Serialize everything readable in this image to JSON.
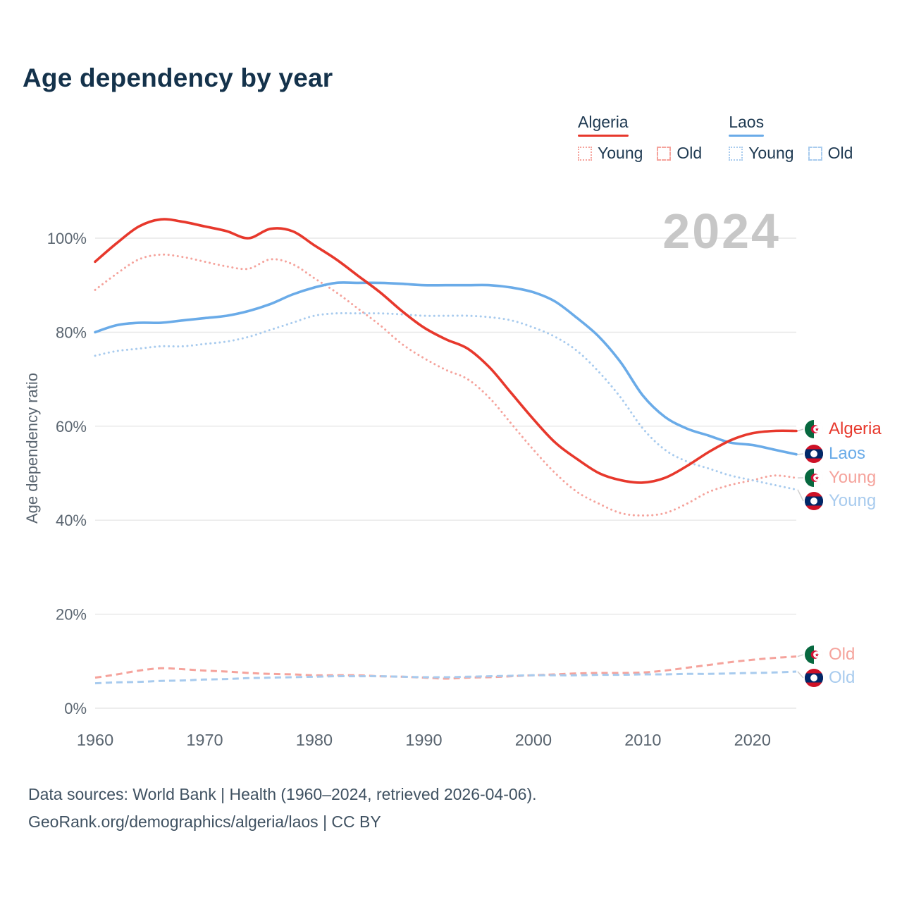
{
  "title": "Age dependency by year",
  "watermark": "2024",
  "ylabel": "Age dependency ratio",
  "colors": {
    "algeria": "#e7382c",
    "algeria_light": "#f5a39c",
    "laos": "#6aabe8",
    "laos_light": "#a8cbee"
  },
  "legend": {
    "algeria": {
      "label": "Algeria",
      "young": "Young",
      "old": "Old"
    },
    "laos": {
      "label": "Laos",
      "young": "Young",
      "old": "Old"
    }
  },
  "end_labels": [
    {
      "label": "Algeria",
      "flag": "algeria",
      "color": "#e7382c"
    },
    {
      "label": "Laos",
      "flag": "laos",
      "color": "#6aabe8"
    },
    {
      "label": "Young",
      "flag": "algeria",
      "color": "#f5a39c"
    },
    {
      "label": "Young",
      "flag": "laos",
      "color": "#a8cbee"
    },
    {
      "label": "Old",
      "flag": "algeria",
      "color": "#f5a39c"
    },
    {
      "label": "Old",
      "flag": "laos",
      "color": "#a8cbee"
    }
  ],
  "footer": {
    "line1": "Data sources: World Bank | Health (1960–2024, retrieved 2026-04-06).",
    "line2": "GeoRank.org/demographics/algeria/laos | CC BY"
  },
  "chart_data": {
    "type": "line",
    "title": "Age dependency by year",
    "xlabel": "",
    "ylabel": "Age dependency ratio",
    "xlim": [
      1960,
      2024
    ],
    "ylim": [
      0,
      107
    ],
    "grid": true,
    "legend_position": "top-right",
    "watermark": "2024",
    "yticks": [
      {
        "v": 0,
        "label": "0%"
      },
      {
        "v": 20,
        "label": "20%"
      },
      {
        "v": 40,
        "label": "40%"
      },
      {
        "v": 60,
        "label": "60%"
      },
      {
        "v": 80,
        "label": "80%"
      },
      {
        "v": 100,
        "label": "100%"
      }
    ],
    "xticks": [
      {
        "v": 1960,
        "label": "1960"
      },
      {
        "v": 1970,
        "label": "1970"
      },
      {
        "v": 1980,
        "label": "1980"
      },
      {
        "v": 1990,
        "label": "1990"
      },
      {
        "v": 2000,
        "label": "2000"
      },
      {
        "v": 2010,
        "label": "2010"
      },
      {
        "v": 2020,
        "label": "2020"
      }
    ],
    "x": [
      1960,
      1962,
      1964,
      1966,
      1968,
      1970,
      1972,
      1974,
      1976,
      1978,
      1980,
      1982,
      1984,
      1986,
      1988,
      1990,
      1992,
      1994,
      1996,
      1998,
      2000,
      2002,
      2004,
      2006,
      2008,
      2010,
      2012,
      2014,
      2016,
      2018,
      2020,
      2022,
      2024
    ],
    "series": [
      {
        "name": "Algeria Young",
        "country": "Algeria",
        "measure": "Young",
        "color": "#f5a39c",
        "style": "dotted",
        "values": [
          89,
          92.5,
          95.5,
          96.5,
          96,
          95,
          94,
          93.5,
          95.5,
          94.5,
          91.5,
          88.5,
          85,
          81.5,
          77.5,
          74.5,
          72,
          70,
          66,
          60.5,
          55,
          50,
          46,
          43.5,
          41.5,
          41,
          41.5,
          43.5,
          46,
          47.5,
          48.5,
          49.5,
          49
        ]
      },
      {
        "name": "Laos Young",
        "country": "Laos",
        "measure": "Young",
        "color": "#a8cbee",
        "style": "dotted",
        "values": [
          75,
          76,
          76.5,
          77,
          77,
          77.5,
          78,
          79,
          80.5,
          82,
          83.5,
          84,
          84,
          84,
          83.8,
          83.5,
          83.5,
          83.5,
          83.2,
          82.5,
          81,
          79,
          76,
          71.5,
          66,
          59.5,
          55,
          52.5,
          51,
          49.5,
          48.5,
          47.5,
          46.5
        ]
      },
      {
        "name": "Algeria Old",
        "country": "Algeria",
        "measure": "Old",
        "color": "#f5a39c",
        "style": "dashed",
        "values": [
          6.5,
          7.2,
          8,
          8.5,
          8.3,
          8,
          7.8,
          7.5,
          7.3,
          7.2,
          7,
          7,
          7,
          6.8,
          6.7,
          6.5,
          6.3,
          6.5,
          6.6,
          6.8,
          7,
          7.2,
          7.4,
          7.5,
          7.5,
          7.6,
          8,
          8.6,
          9.2,
          9.8,
          10.3,
          10.7,
          11
        ]
      },
      {
        "name": "Laos Old",
        "country": "Laos",
        "measure": "Old",
        "color": "#a8cbee",
        "style": "dashed",
        "values": [
          5.3,
          5.5,
          5.6,
          5.8,
          5.9,
          6.1,
          6.2,
          6.4,
          6.5,
          6.6,
          6.7,
          6.8,
          6.8,
          6.8,
          6.7,
          6.6,
          6.6,
          6.7,
          6.8,
          6.9,
          7,
          7,
          7,
          7.1,
          7.1,
          7.2,
          7.2,
          7.3,
          7.3,
          7.4,
          7.5,
          7.6,
          7.8
        ]
      },
      {
        "name": "Laos",
        "country": "Laos",
        "measure": "Total",
        "color": "#6aabe8",
        "style": "solid",
        "values": [
          80,
          81.5,
          82,
          82,
          82.5,
          83,
          83.5,
          84.5,
          86,
          88,
          89.5,
          90.5,
          90.5,
          90.5,
          90.3,
          90,
          90,
          90,
          90,
          89.5,
          88.5,
          86.5,
          83,
          79,
          73.5,
          66.5,
          62,
          59.5,
          58,
          56.5,
          56,
          55,
          54
        ]
      },
      {
        "name": "Algeria",
        "country": "Algeria",
        "measure": "Total",
        "color": "#e7382c",
        "style": "solid",
        "values": [
          95,
          99,
          102.5,
          104,
          103.5,
          102.5,
          101.5,
          100,
          102,
          101.5,
          98.5,
          95.5,
          92,
          88.5,
          84.5,
          81,
          78.5,
          76.5,
          72.5,
          67,
          61.5,
          56.5,
          53,
          50,
          48.5,
          48,
          49,
          51.5,
          54.5,
          57,
          58.5,
          59,
          59
        ]
      }
    ]
  }
}
